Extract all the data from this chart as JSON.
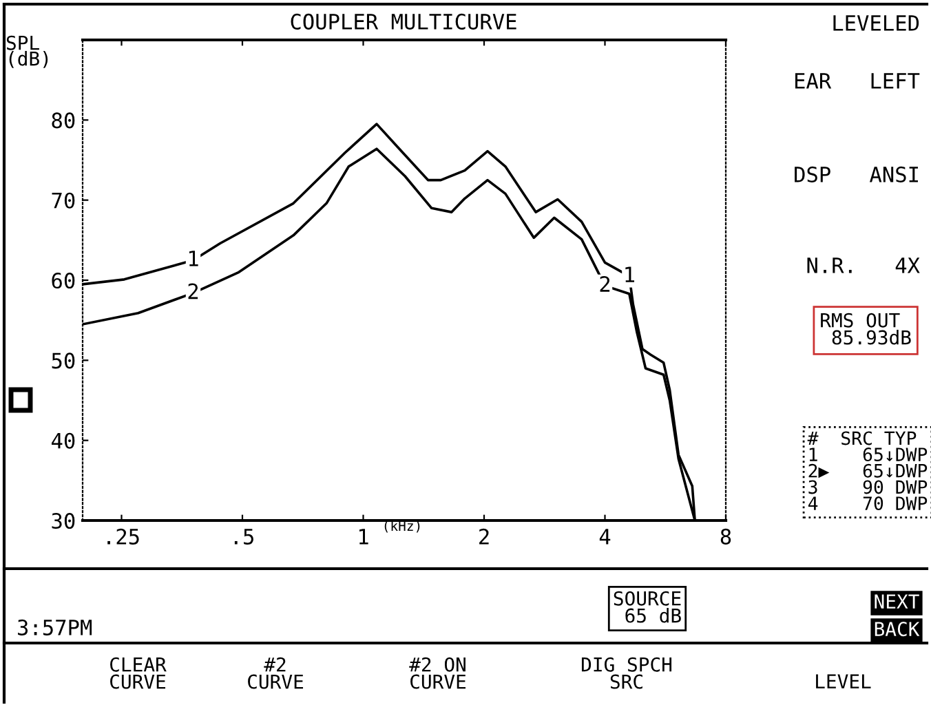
{
  "chart_data": {
    "type": "line",
    "title": "COUPLER MULTICURVE",
    "xlabel": "(kHz)",
    "ylabel": "SPL\n(dB)",
    "log": "x",
    "xlim": [
      0.2,
      8
    ],
    "ylim": [
      30,
      90
    ],
    "xticks": [
      {
        "value": 0.25,
        "label": ".25"
      },
      {
        "value": 0.5,
        "label": ".5"
      },
      1,
      2,
      4,
      8
    ],
    "yticks": [
      30,
      40,
      50,
      60,
      70,
      80
    ],
    "grid": false,
    "legend": false,
    "marker": "none",
    "line_style": "solid",
    "series": [
      {
        "name": "1",
        "color": "#000000",
        "x": [
          0.2,
          0.254,
          0.377,
          0.44,
          0.67,
          0.9,
          1.08,
          1.23,
          1.45,
          1.56,
          1.79,
          2.04,
          2.26,
          2.69,
          3.05,
          3.5,
          4.0,
          4.6,
          4.7,
          4.96,
          5.2,
          5.6,
          5.8,
          6.1,
          6.6,
          6.7
        ],
        "values": [
          59.5,
          60.1,
          62.5,
          64.6,
          69.6,
          75.9,
          79.5,
          76.4,
          72.5,
          72.5,
          73.7,
          76.1,
          74.2,
          68.5,
          70.1,
          67.3,
          62.2,
          60.5,
          57,
          51.4,
          50.7,
          49.7,
          46.3,
          38.2,
          34.3,
          30
        ]
      },
      {
        "name": "2",
        "color": "#000000",
        "x": [
          0.2,
          0.275,
          0.377,
          0.49,
          0.67,
          0.81,
          0.92,
          1.08,
          1.27,
          1.48,
          1.66,
          1.79,
          2.04,
          2.26,
          2.66,
          2.99,
          3.5,
          4.0,
          4.6,
          4.8,
          5.05,
          5.6,
          5.8,
          6.1,
          6.7
        ],
        "values": [
          54.5,
          55.9,
          58.4,
          61,
          65.6,
          69.6,
          74.2,
          76.4,
          73,
          69,
          68.5,
          70.2,
          72.5,
          70.8,
          65.3,
          67.8,
          65.1,
          59.3,
          58.3,
          53.6,
          49,
          48.2,
          45,
          37.7,
          30
        ]
      }
    ],
    "annotations": [
      "LEVELED",
      "EAR   LEFT",
      "DSP   ANSI",
      "N.R.   4X",
      "RMS OUT\n 85.93dB",
      "#  SRC TYP\n1    65↓DWP\n2▶   65↓DWP\n3    90 DWP\n4    70 DWP",
      "3:57PM",
      "SOURCE\n 65 dB",
      "NEXT",
      "BACK",
      "CLEAR\nCURVE",
      "#2\nCURVE",
      "#2 ON\nCURVE",
      "DIG SPCH\nSRC",
      "LEVEL"
    ]
  }
}
